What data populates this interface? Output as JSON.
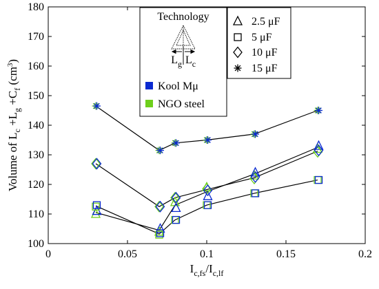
{
  "chart_data": {
    "type": "scatter",
    "xlabel": {
      "main": "I",
      "sub1": "c,fs",
      "sep": "/I",
      "sub2": "c,lf"
    },
    "ylabel": {
      "prefix": "Volume of  L",
      "s1": "c",
      "p1": " +L",
      "s2": "g",
      "p2": " +C",
      "s3": "f",
      "p3": " (cm",
      "sup": "3",
      "p4": ")"
    },
    "xlim": [
      0,
      0.2
    ],
    "ylim": [
      100,
      180
    ],
    "xticks": [
      0,
      0.05,
      0.1,
      0.15,
      0.2
    ],
    "xtick_labels": [
      "0",
      "0.05",
      "0.1",
      "0.15",
      "0.2"
    ],
    "yticks": [
      100,
      110,
      120,
      130,
      140,
      150,
      160,
      170,
      180
    ],
    "ytick_labels": [
      "100",
      "110",
      "120",
      "130",
      "140",
      "150",
      "160",
      "170",
      "180"
    ],
    "grid": false,
    "series": [
      {
        "capacitance": "2.5 μF",
        "marker": "triangle",
        "kool_mu": [
          [
            0.03,
            111
          ],
          [
            0.07,
            105
          ],
          [
            0.08,
            112
          ],
          [
            0.1,
            116
          ],
          [
            0.13,
            124
          ],
          [
            0.17,
            133
          ]
        ],
        "ngo_steel": [
          [
            0.03,
            110
          ],
          [
            0.07,
            104
          ],
          [
            0.08,
            114
          ],
          [
            0.1,
            119
          ],
          [
            0.13,
            123
          ],
          [
            0.17,
            132
          ]
        ]
      },
      {
        "capacitance": "5 μF",
        "marker": "square",
        "kool_mu": [
          [
            0.03,
            113
          ],
          [
            0.07,
            103.5
          ],
          [
            0.08,
            108
          ],
          [
            0.1,
            113
          ],
          [
            0.13,
            117
          ],
          [
            0.17,
            121.5
          ]
        ],
        "ngo_steel": [
          [
            0.03,
            112.5
          ],
          [
            0.07,
            103
          ],
          [
            0.08,
            108
          ],
          [
            0.1,
            113
          ],
          [
            0.13,
            117
          ],
          [
            0.17,
            121.5
          ]
        ]
      },
      {
        "capacitance": "10 μF",
        "marker": "diamond",
        "kool_mu": [
          [
            0.03,
            127
          ],
          [
            0.07,
            112.5
          ],
          [
            0.08,
            115.5
          ],
          [
            0.1,
            118
          ],
          [
            0.13,
            122.5
          ],
          [
            0.17,
            131.5
          ]
        ],
        "ngo_steel": [
          [
            0.03,
            127
          ],
          [
            0.07,
            112.5
          ],
          [
            0.08,
            115.5
          ],
          [
            0.1,
            118.5
          ],
          [
            0.13,
            122
          ],
          [
            0.17,
            131
          ]
        ]
      },
      {
        "capacitance": "15 μF",
        "marker": "star",
        "kool_mu": [
          [
            0.03,
            146.5
          ],
          [
            0.07,
            131.5
          ],
          [
            0.08,
            134
          ],
          [
            0.1,
            135
          ],
          [
            0.13,
            137
          ],
          [
            0.17,
            145
          ]
        ],
        "ngo_steel": [
          [
            0.03,
            146.5
          ],
          [
            0.07,
            131.5
          ],
          [
            0.08,
            134
          ],
          [
            0.1,
            135
          ],
          [
            0.13,
            137
          ],
          [
            0.17,
            145
          ]
        ]
      }
    ],
    "legend_technology": {
      "title": "Technology",
      "lg_label": "L",
      "lg_sub": "g",
      "lc_label": "L",
      "lc_sub": "c",
      "entries": [
        {
          "label": "Kool Mμ",
          "color": "#0a2ad0"
        },
        {
          "label": "NGO steel",
          "color": "#6ecf1c"
        }
      ]
    },
    "legend_capacitance": [
      "2.5 μF",
      "5 μF",
      "10 μF",
      "15 μF"
    ],
    "line_color": "#000000"
  }
}
